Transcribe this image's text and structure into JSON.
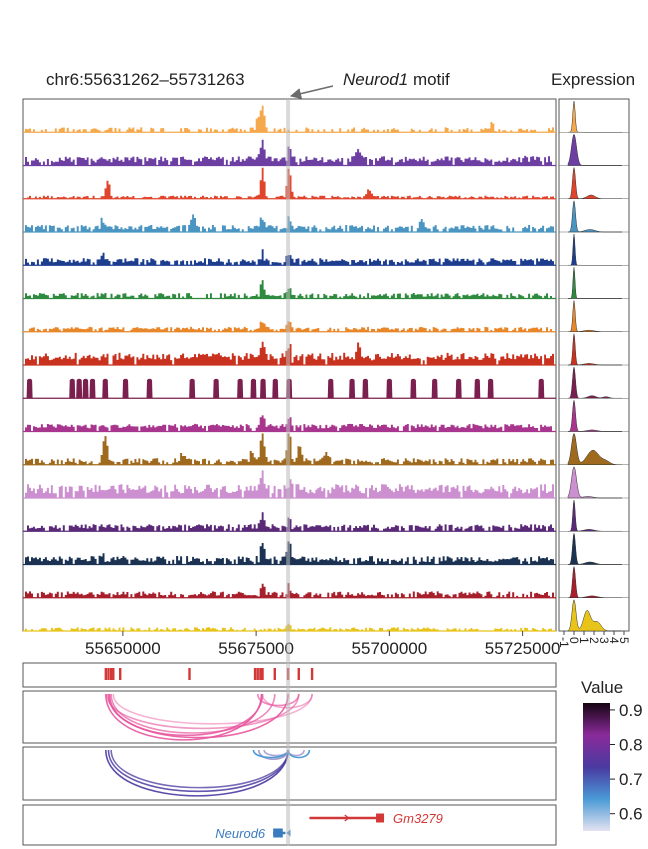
{
  "header": {
    "region": "chr6:55631262–55731263",
    "motif_italic": "Neurod1",
    "motif_rest": " motif",
    "expression_title": "Expression"
  },
  "chart_data": {
    "type": "area",
    "title": "chr6:55631262–55731263",
    "xlim": [
      55631262,
      55731263
    ],
    "x_ticks": [
      55650000,
      55675000,
      55700000,
      55725000
    ],
    "x_tick_labels": [
      "55650000",
      "55675000",
      "55700000",
      "55725000"
    ],
    "highlight": {
      "label": "Neurod1 motif",
      "position": 55681000
    },
    "coverage_tracks": [
      {
        "color": "#f5a94c",
        "baseline": 0.06,
        "noise": 0.1,
        "gap": 0.55,
        "peaks": [
          [
            55676000,
            0.85
          ],
          [
            55675200,
            0.4
          ],
          [
            55719000,
            0.25
          ]
        ]
      },
      {
        "color": "#6d3fa3",
        "baseline": 0.1,
        "noise": 0.2,
        "gap": 0.1,
        "peaks": [
          [
            55676000,
            0.55
          ],
          [
            55681000,
            0.4
          ],
          [
            55694000,
            0.35
          ],
          [
            55725000,
            0.25
          ]
        ]
      },
      {
        "color": "#e0452b",
        "baseline": 0.04,
        "noise": 0.06,
        "gap": 0.3,
        "peaks": [
          [
            55647000,
            0.6
          ],
          [
            55676000,
            0.95
          ],
          [
            55681000,
            0.95
          ],
          [
            55696000,
            0.3
          ]
        ]
      },
      {
        "color": "#4a95c2",
        "baseline": 0.08,
        "noise": 0.15,
        "gap": 0.2,
        "peaks": [
          [
            55646000,
            0.35
          ],
          [
            55663000,
            0.45
          ],
          [
            55676000,
            0.4
          ],
          [
            55681000,
            0.3
          ],
          [
            55706000,
            0.3
          ]
        ]
      },
      {
        "color": "#1d3d8f",
        "baseline": 0.08,
        "noise": 0.15,
        "gap": 0.15,
        "peaks": [
          [
            55646000,
            0.25
          ],
          [
            55676000,
            0.3
          ],
          [
            55681000,
            0.25
          ]
        ]
      },
      {
        "color": "#2e8a3e",
        "baseline": 0.06,
        "noise": 0.12,
        "gap": 0.25,
        "peaks": [
          [
            55676000,
            0.45
          ],
          [
            55681000,
            0.25
          ]
        ]
      },
      {
        "color": "#e8862a",
        "baseline": 0.06,
        "noise": 0.1,
        "gap": 0.2,
        "peaks": [
          [
            55676000,
            0.3
          ],
          [
            55681000,
            0.25
          ]
        ]
      },
      {
        "color": "#c9321f",
        "baseline": 0.15,
        "noise": 0.25,
        "gap": 0.05,
        "peaks": [
          [
            55676000,
            0.55
          ],
          [
            55681000,
            0.4
          ],
          [
            55694000,
            0.35
          ]
        ]
      },
      {
        "color": "#7a1f4e",
        "spikes": [
          55632500,
          55640500,
          55641800,
          55643000,
          55644300,
          55646700,
          55650500,
          55655000,
          55663000,
          55667500,
          55672000,
          55674500,
          55676300,
          55678600,
          55681200,
          55689000,
          55693000,
          55695500,
          55700000,
          55704500,
          55708500,
          55713000,
          55716500,
          55719000,
          55728500
        ]
      },
      {
        "color": "#a8368e",
        "baseline": 0.1,
        "noise": 0.15,
        "gap": 0.1,
        "peaks": [
          [
            55676000,
            0.35
          ],
          [
            55681000,
            0.3
          ]
        ]
      },
      {
        "color": "#a06a1e",
        "baseline": 0.06,
        "noise": 0.15,
        "gap": 0.2,
        "peaks": [
          [
            55646500,
            0.95
          ],
          [
            55661000,
            0.3
          ],
          [
            55674000,
            0.35
          ],
          [
            55676000,
            1.0
          ],
          [
            55681000,
            0.95
          ],
          [
            55683000,
            0.55
          ],
          [
            55688000,
            0.3
          ]
        ]
      },
      {
        "color": "#cc8fcf",
        "baseline": 0.15,
        "noise": 0.3,
        "gap": 0.05,
        "peaks": [
          [
            55676000,
            0.5
          ],
          [
            55681000,
            0.35
          ]
        ]
      },
      {
        "color": "#5a2a78",
        "baseline": 0.08,
        "noise": 0.15,
        "gap": 0.15,
        "peaks": [
          [
            55676000,
            0.45
          ],
          [
            55681000,
            0.35
          ]
        ]
      },
      {
        "color": "#1b3252",
        "baseline": 0.08,
        "noise": 0.2,
        "gap": 0.15,
        "peaks": [
          [
            55676000,
            0.55
          ],
          [
            55681000,
            0.55
          ],
          [
            55646000,
            0.3
          ]
        ]
      },
      {
        "color": "#a81f2c",
        "baseline": 0.06,
        "noise": 0.15,
        "gap": 0.2,
        "peaks": [
          [
            55676000,
            0.3
          ],
          [
            55681000,
            0.3
          ]
        ]
      },
      {
        "color": "#e8c41b",
        "baseline": 0.04,
        "noise": 0.08,
        "gap": 0.4,
        "peaks": [
          [
            55681000,
            0.25
          ]
        ]
      }
    ],
    "expression": {
      "x_ticks": [
        -1,
        0,
        1,
        2,
        3,
        4,
        5
      ],
      "x_tick_labels": [
        "-1",
        "0",
        "1",
        "2",
        "3",
        "4",
        "5"
      ],
      "xlim": [
        -1,
        5.2
      ],
      "densities": [
        {
          "color": "#f5a94c",
          "components": [
            [
              0,
              0.12,
              1.0
            ]
          ]
        },
        {
          "color": "#6d3fa3",
          "components": [
            [
              0,
              0.25,
              1.0
            ]
          ]
        },
        {
          "color": "#e0452b",
          "components": [
            [
              0,
              0.15,
              1.0
            ],
            [
              1.7,
              0.4,
              0.12
            ]
          ]
        },
        {
          "color": "#4a95c2",
          "components": [
            [
              0,
              0.15,
              1.0
            ],
            [
              1.6,
              0.5,
              0.08
            ]
          ]
        },
        {
          "color": "#1d3d8f",
          "components": [
            [
              0,
              0.1,
              1.0
            ]
          ]
        },
        {
          "color": "#2e8a3e",
          "components": [
            [
              0,
              0.1,
              1.0
            ]
          ]
        },
        {
          "color": "#e8862a",
          "components": [
            [
              0,
              0.12,
              1.0
            ],
            [
              1.5,
              0.5,
              0.05
            ]
          ]
        },
        {
          "color": "#c9321f",
          "components": [
            [
              0,
              0.12,
              1.0
            ],
            [
              1.5,
              0.5,
              0.05
            ]
          ]
        },
        {
          "color": "#7a1f4e",
          "components": [
            [
              0,
              0.15,
              1.0
            ],
            [
              1.8,
              0.4,
              0.08
            ],
            [
              3.2,
              0.3,
              0.05
            ]
          ]
        },
        {
          "color": "#a8368e",
          "components": [
            [
              0,
              0.15,
              1.0
            ],
            [
              1.8,
              0.5,
              0.05
            ]
          ]
        },
        {
          "color": "#a06a1e",
          "components": [
            [
              0,
              0.25,
              0.75
            ],
            [
              1.9,
              0.6,
              0.35
            ],
            [
              3.2,
              0.4,
              0.08
            ]
          ]
        },
        {
          "color": "#cc8fcf",
          "components": [
            [
              0,
              0.25,
              1.0
            ],
            [
              1.4,
              0.5,
              0.05
            ]
          ]
        },
        {
          "color": "#5a2a78",
          "components": [
            [
              0,
              0.12,
              1.0
            ],
            [
              1.5,
              0.5,
              0.06
            ]
          ]
        },
        {
          "color": "#1b3252",
          "components": [
            [
              0,
              0.15,
              1.0
            ],
            [
              1.6,
              0.5,
              0.08
            ]
          ]
        },
        {
          "color": "#a81f2c",
          "components": [
            [
              0,
              0.15,
              1.0
            ],
            [
              1.8,
              0.5,
              0.06
            ]
          ]
        },
        {
          "color": "#e8c41b",
          "components": [
            [
              0,
              0.2,
              0.85
            ],
            [
              1.3,
              0.35,
              0.55
            ],
            [
              2.3,
              0.4,
              0.25
            ]
          ]
        }
      ]
    },
    "peaks_track": {
      "color": "#d33838",
      "positions": [
        55646800,
        55647300,
        55647800,
        55648200,
        55649500,
        55662500,
        55674800,
        55675300,
        55675800,
        55676200,
        55678500,
        55681000,
        55683000,
        55685500
      ]
    },
    "links_pink": {
      "color": "#e8559e",
      "arcs": [
        [
          55646800,
          55676000,
          1.0,
          0.9
        ],
        [
          55647300,
          55681000,
          0.95,
          0.9
        ],
        [
          55647800,
          55678500,
          0.85,
          0.7
        ],
        [
          55647000,
          55683000,
          0.75,
          0.6
        ],
        [
          55648200,
          55685500,
          0.65,
          0.45
        ],
        [
          55647500,
          55676200,
          0.9,
          0.85
        ],
        [
          55675300,
          55683000,
          0.25,
          0.7
        ],
        [
          55676200,
          55685500,
          0.3,
          0.5
        ]
      ]
    },
    "links_purple": {
      "color": "#4a3aa0",
      "arcs": [
        [
          55646800,
          55681000,
          1.0,
          0.9
        ],
        [
          55647300,
          55681000,
          0.9,
          0.85
        ],
        [
          55647800,
          55681000,
          0.82,
          0.75
        ],
        [
          55675500,
          55681000,
          0.2,
          0.5
        ],
        [
          55676500,
          55681000,
          0.12,
          0.45
        ],
        [
          55681000,
          55684000,
          0.12,
          0.45
        ]
      ]
    },
    "genes": [
      {
        "name": "Gm3279",
        "color": "#d33838",
        "start": 55685000,
        "end": 55699000,
        "exon_start": 55697500,
        "exon_end": 55699000,
        "strand": "+",
        "label_position": "right"
      },
      {
        "name": "Neurod6",
        "color": "#3a7bbf",
        "start": 55678200,
        "end": 55680500,
        "exon_start": 55678200,
        "exon_end": 55680000,
        "strand": "-",
        "label_position": "left"
      }
    ],
    "colorbar": {
      "title": "Value",
      "ticks": [
        0.9,
        0.8,
        0.7,
        0.6
      ],
      "tick_labels": [
        "0.9",
        "0.8",
        "0.7",
        "0.6"
      ],
      "range": [
        0.55,
        0.92
      ],
      "colors": [
        "#e4e2f0",
        "#4a9ad6",
        "#4a3aa0",
        "#8a2a9a",
        "#150512"
      ]
    }
  }
}
